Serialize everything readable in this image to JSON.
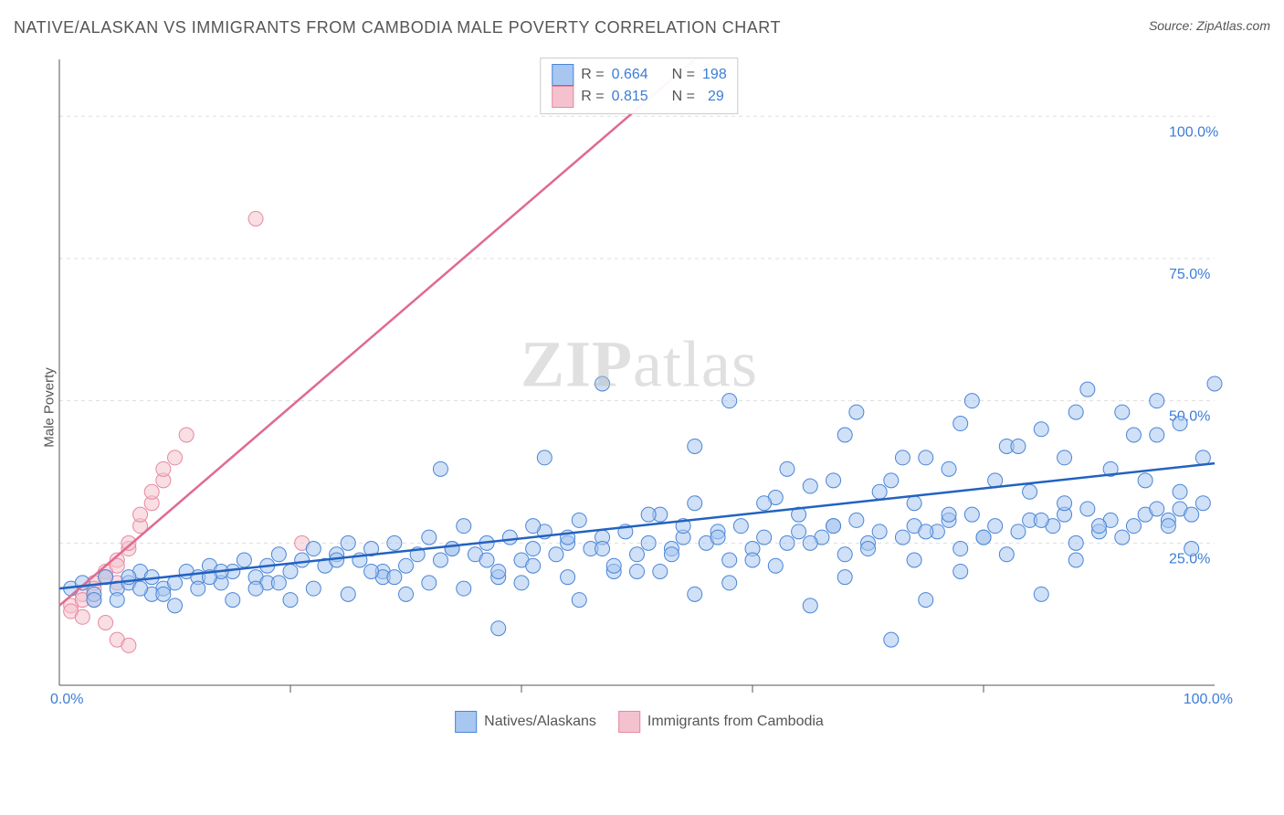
{
  "title": "NATIVE/ALASKAN VS IMMIGRANTS FROM CAMBODIA MALE POVERTY CORRELATION CHART",
  "source_prefix": "Source: ",
  "source_name": "ZipAtlas.com",
  "y_axis_label": "Male Poverty",
  "watermark_bold": "ZIP",
  "watermark_plain": "atlas",
  "chart": {
    "type": "scatter",
    "xlim": [
      0,
      100
    ],
    "ylim": [
      0,
      110
    ],
    "x_ticks": [
      0,
      100
    ],
    "x_tick_labels": [
      "0.0%",
      "100.0%"
    ],
    "y_ticks": [
      25,
      50,
      75,
      100
    ],
    "y_tick_labels": [
      "25.0%",
      "50.0%",
      "75.0%",
      "100.0%"
    ],
    "background_color": "#ffffff",
    "grid_color": "#dddddd",
    "grid_dash": "4,4",
    "axis_line_color": "#555555",
    "tick_label_color": "#3b7dd8",
    "tick_fontsize": 16,
    "marker_radius": 8,
    "marker_opacity": 0.55,
    "line_width": 2.5,
    "x_minor_tick_count": 5
  },
  "series": {
    "blue": {
      "label": "Natives/Alaskans",
      "fill_color": "#a7c7f0",
      "stroke_color": "#4a85d6",
      "line_color": "#2362c0",
      "R": "0.664",
      "N": "198",
      "trend": {
        "x1": 0,
        "y1": 17,
        "x2": 100,
        "y2": 39
      },
      "points": [
        [
          1,
          17
        ],
        [
          2,
          18
        ],
        [
          3,
          16
        ],
        [
          4,
          19
        ],
        [
          5,
          17
        ],
        [
          6,
          18
        ],
        [
          7,
          20
        ],
        [
          8,
          19
        ],
        [
          9,
          17
        ],
        [
          10,
          18
        ],
        [
          11,
          20
        ],
        [
          12,
          19
        ],
        [
          13,
          21
        ],
        [
          14,
          18
        ],
        [
          15,
          20
        ],
        [
          16,
          22
        ],
        [
          17,
          19
        ],
        [
          18,
          21
        ],
        [
          19,
          23
        ],
        [
          20,
          20
        ],
        [
          21,
          22
        ],
        [
          22,
          24
        ],
        [
          23,
          21
        ],
        [
          24,
          23
        ],
        [
          25,
          25
        ],
        [
          26,
          22
        ],
        [
          27,
          24
        ],
        [
          28,
          20
        ],
        [
          29,
          25
        ],
        [
          30,
          21
        ],
        [
          31,
          23
        ],
        [
          32,
          26
        ],
        [
          33,
          22
        ],
        [
          34,
          24
        ],
        [
          35,
          28
        ],
        [
          36,
          23
        ],
        [
          37,
          25
        ],
        [
          38,
          19
        ],
        [
          39,
          26
        ],
        [
          40,
          22
        ],
        [
          41,
          24
        ],
        [
          42,
          27
        ],
        [
          43,
          23
        ],
        [
          44,
          25
        ],
        [
          45,
          29
        ],
        [
          46,
          24
        ],
        [
          47,
          26
        ],
        [
          48,
          20
        ],
        [
          49,
          27
        ],
        [
          50,
          23
        ],
        [
          51,
          25
        ],
        [
          52,
          30
        ],
        [
          53,
          24
        ],
        [
          54,
          26
        ],
        [
          55,
          32
        ],
        [
          56,
          25
        ],
        [
          57,
          27
        ],
        [
          58,
          18
        ],
        [
          59,
          28
        ],
        [
          60,
          24
        ],
        [
          61,
          26
        ],
        [
          62,
          33
        ],
        [
          63,
          25
        ],
        [
          64,
          27
        ],
        [
          65,
          35
        ],
        [
          66,
          26
        ],
        [
          67,
          28
        ],
        [
          68,
          19
        ],
        [
          69,
          29
        ],
        [
          70,
          25
        ],
        [
          71,
          27
        ],
        [
          72,
          36
        ],
        [
          73,
          26
        ],
        [
          74,
          28
        ],
        [
          75,
          40
        ],
        [
          76,
          27
        ],
        [
          77,
          29
        ],
        [
          78,
          20
        ],
        [
          79,
          30
        ],
        [
          80,
          26
        ],
        [
          81,
          28
        ],
        [
          82,
          42
        ],
        [
          83,
          27
        ],
        [
          84,
          29
        ],
        [
          85,
          45
        ],
        [
          86,
          28
        ],
        [
          87,
          30
        ],
        [
          88,
          22
        ],
        [
          89,
          31
        ],
        [
          90,
          27
        ],
        [
          91,
          29
        ],
        [
          92,
          48
        ],
        [
          93,
          28
        ],
        [
          94,
          30
        ],
        [
          95,
          50
        ],
        [
          96,
          29
        ],
        [
          97,
          31
        ],
        [
          98,
          24
        ],
        [
          99,
          32
        ],
        [
          100,
          53
        ],
        [
          15,
          15
        ],
        [
          25,
          16
        ],
        [
          35,
          17
        ],
        [
          45,
          15
        ],
        [
          55,
          16
        ],
        [
          65,
          14
        ],
        [
          75,
          15
        ],
        [
          85,
          16
        ],
        [
          38,
          10
        ],
        [
          72,
          8
        ],
        [
          42,
          40
        ],
        [
          55,
          42
        ],
        [
          68,
          44
        ],
        [
          78,
          46
        ],
        [
          88,
          48
        ],
        [
          95,
          44
        ],
        [
          63,
          38
        ],
        [
          73,
          40
        ],
        [
          83,
          42
        ],
        [
          93,
          44
        ],
        [
          5,
          15
        ],
        [
          8,
          16
        ],
        [
          12,
          17
        ],
        [
          18,
          18
        ],
        [
          22,
          17
        ],
        [
          28,
          19
        ],
        [
          32,
          18
        ],
        [
          38,
          20
        ],
        [
          44,
          19
        ],
        [
          48,
          21
        ],
        [
          52,
          20
        ],
        [
          58,
          22
        ],
        [
          62,
          21
        ],
        [
          68,
          23
        ],
        [
          74,
          22
        ],
        [
          78,
          24
        ],
        [
          82,
          23
        ],
        [
          88,
          25
        ],
        [
          92,
          26
        ],
        [
          96,
          28
        ],
        [
          6,
          19
        ],
        [
          14,
          20
        ],
        [
          24,
          22
        ],
        [
          34,
          24
        ],
        [
          44,
          26
        ],
        [
          54,
          28
        ],
        [
          64,
          30
        ],
        [
          74,
          32
        ],
        [
          84,
          34
        ],
        [
          94,
          36
        ],
        [
          10,
          14
        ],
        [
          20,
          15
        ],
        [
          30,
          16
        ],
        [
          40,
          18
        ],
        [
          50,
          20
        ],
        [
          60,
          22
        ],
        [
          70,
          24
        ],
        [
          80,
          26
        ],
        [
          90,
          28
        ],
        [
          98,
          30
        ],
        [
          33,
          38
        ],
        [
          47,
          53
        ],
        [
          58,
          50
        ],
        [
          69,
          48
        ],
        [
          79,
          50
        ],
        [
          89,
          52
        ],
        [
          97,
          46
        ],
        [
          87,
          40
        ],
        [
          77,
          38
        ],
        [
          67,
          36
        ],
        [
          3,
          15
        ],
        [
          7,
          17
        ],
        [
          13,
          19
        ],
        [
          19,
          18
        ],
        [
          27,
          20
        ],
        [
          37,
          22
        ],
        [
          47,
          24
        ],
        [
          57,
          26
        ],
        [
          67,
          28
        ],
        [
          77,
          30
        ],
        [
          87,
          32
        ],
        [
          97,
          34
        ],
        [
          9,
          16
        ],
        [
          17,
          17
        ],
        [
          29,
          19
        ],
        [
          41,
          21
        ],
        [
          53,
          23
        ],
        [
          65,
          25
        ],
        [
          75,
          27
        ],
        [
          85,
          29
        ],
        [
          95,
          31
        ],
        [
          99,
          40
        ],
        [
          91,
          38
        ],
        [
          81,
          36
        ],
        [
          71,
          34
        ],
        [
          61,
          32
        ],
        [
          51,
          30
        ],
        [
          41,
          28
        ]
      ]
    },
    "pink": {
      "label": "Immigrants from Cambodia",
      "fill_color": "#f4c2ce",
      "stroke_color": "#e589a3",
      "line_color": "#e06b8f",
      "R": "0.815",
      "N": "29",
      "trend": {
        "x1": 0,
        "y1": 14,
        "x2": 55,
        "y2": 110
      },
      "points": [
        [
          1,
          14
        ],
        [
          2,
          16
        ],
        [
          1,
          13
        ],
        [
          3,
          18
        ],
        [
          2,
          15
        ],
        [
          4,
          20
        ],
        [
          3,
          17
        ],
        [
          5,
          22
        ],
        [
          2,
          12
        ],
        [
          4,
          19
        ],
        [
          3,
          15
        ],
        [
          6,
          24
        ],
        [
          5,
          21
        ],
        [
          7,
          28
        ],
        [
          6,
          25
        ],
        [
          8,
          32
        ],
        [
          5,
          18
        ],
        [
          9,
          36
        ],
        [
          7,
          30
        ],
        [
          10,
          40
        ],
        [
          8,
          34
        ],
        [
          11,
          44
        ],
        [
          9,
          38
        ],
        [
          5,
          8
        ],
        [
          4,
          11
        ],
        [
          6,
          7
        ],
        [
          21,
          25
        ],
        [
          17,
          82
        ],
        [
          55,
          108
        ]
      ]
    }
  },
  "legend_top": {
    "r_label": "R =",
    "n_label": "N ="
  }
}
